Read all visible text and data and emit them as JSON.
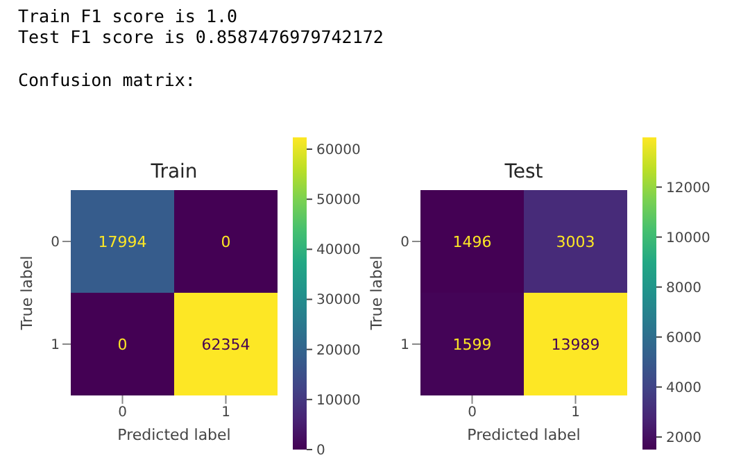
{
  "chart_data": [
    {
      "type": "heatmap",
      "title": "Train",
      "annotations": [
        "Train F1 score is 1.0",
        "Test F1 score is 0.8587476979742172",
        "Confusion matrix:"
      ],
      "xlabel": "Predicted label",
      "ylabel": "True label",
      "categories": [
        "0",
        "1"
      ],
      "y_categories": [
        "0",
        "1"
      ],
      "cells": [
        [
          17994,
          0
        ],
        [
          0,
          62354
        ]
      ],
      "clim": [
        0,
        62354
      ],
      "cticks": [
        0,
        10000,
        20000,
        30000,
        40000,
        50000,
        60000
      ],
      "data_labels": true
    },
    {
      "type": "heatmap",
      "title": "Test",
      "xlabel": "Predicted label",
      "ylabel": "True label",
      "categories": [
        "0",
        "1"
      ],
      "y_categories": [
        "0",
        "1"
      ],
      "cells": [
        [
          1496,
          3003
        ],
        [
          1599,
          13989
        ]
      ],
      "clim": [
        1496,
        13989
      ],
      "cticks": [
        2000,
        4000,
        6000,
        8000,
        10000,
        12000
      ],
      "data_labels": true
    }
  ]
}
